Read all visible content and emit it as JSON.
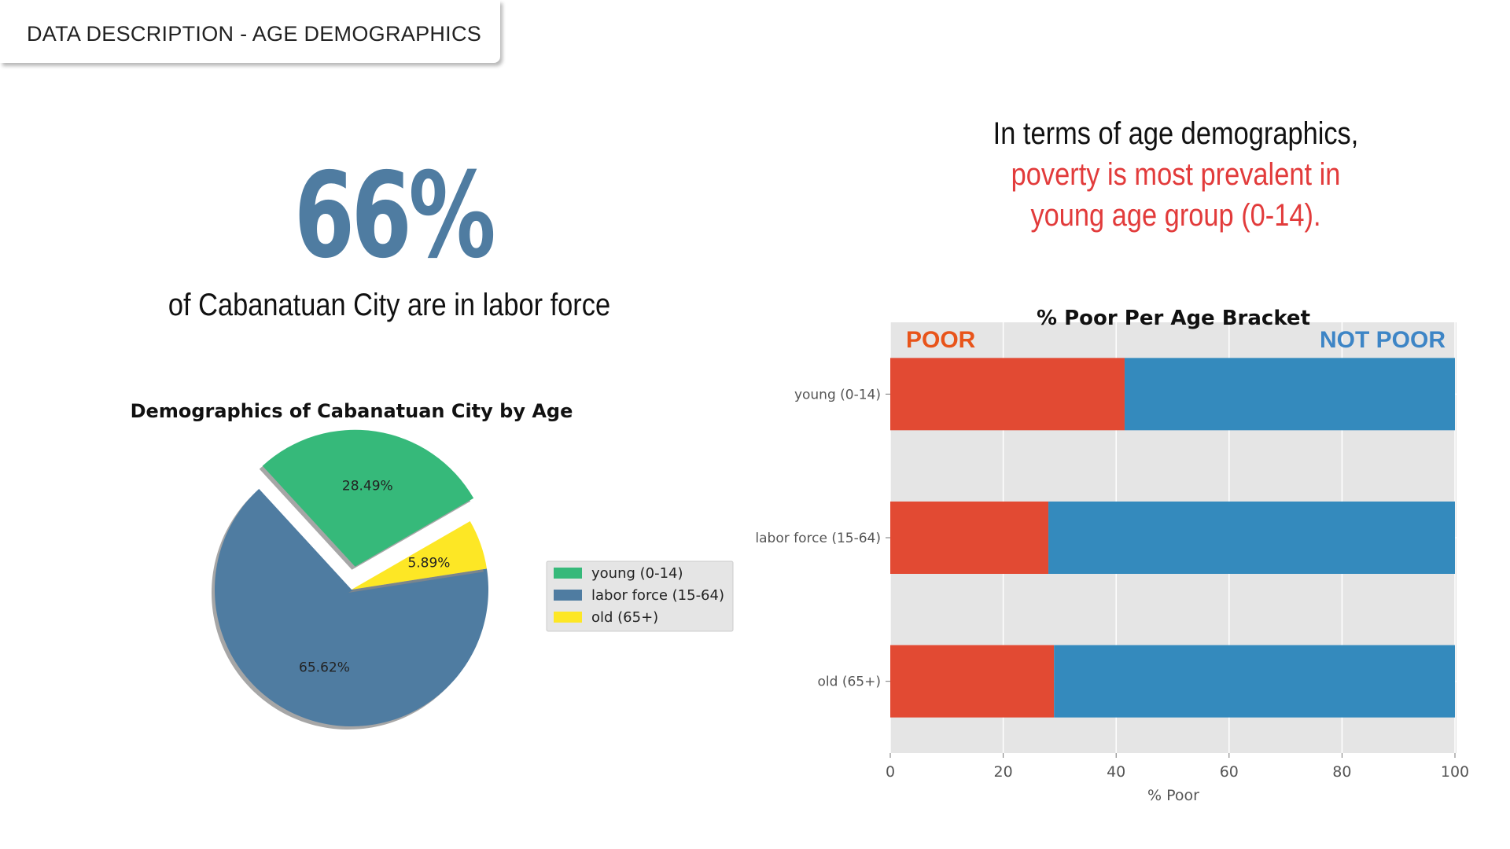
{
  "header": {
    "title": "DATA DESCRIPTION - AGE DEMOGRAPHICS"
  },
  "stat": {
    "value": "66%",
    "caption": "of Cabanatuan City are in labor force"
  },
  "headline": {
    "line1": "In terms of age demographics,",
    "line2": "poverty is most prevalent in",
    "line3": "young age group (0-14)."
  },
  "colors": {
    "young": "#36b97a",
    "labor": "#4f7ca1",
    "old": "#fde725",
    "poor": "#e24a33",
    "not_poor": "#348abd",
    "axes_bg": "#e5e5e5",
    "poor_label": "#e8541a",
    "not_poor_label": "#3d85c6"
  },
  "chart_data": [
    {
      "type": "pie",
      "title": "Demographics of Cabanatuan City by Age",
      "labels": [
        "young (0-14)",
        "labor force (15-64)",
        "old (65+)"
      ],
      "values": [
        28.49,
        65.62,
        5.89
      ],
      "value_labels": [
        "28.49%",
        "65.62%",
        "5.89%"
      ],
      "exploded": "young (0-14)",
      "shadow": true,
      "legend": "right"
    },
    {
      "type": "bar",
      "orientation": "horizontal",
      "stacked": true,
      "title": "% Poor Per Age Bracket",
      "categories": [
        "young (0-14)",
        "labor force (15-64)",
        "old (65+)"
      ],
      "series": [
        {
          "name": "POOR",
          "values": [
            41.5,
            28,
            29
          ]
        },
        {
          "name": "NOT POOR",
          "values": [
            58.5,
            72,
            71
          ]
        }
      ],
      "xlabel": "% Poor",
      "ylabel": "",
      "xlim": [
        0,
        100
      ],
      "xticks": [
        0,
        20,
        40,
        60,
        80,
        100
      ],
      "grid": true
    }
  ]
}
